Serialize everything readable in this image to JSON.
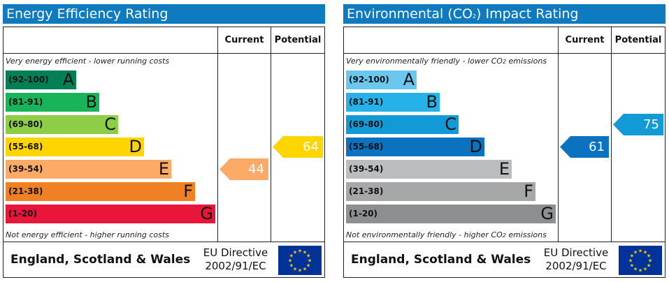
{
  "energy": {
    "title": "Energy Efficiency Rating",
    "col_current": "Current",
    "col_potential": "Potential",
    "top_note": "Very energy efficient - lower running costs",
    "bottom_note": "Not energy efficient - higher running costs",
    "bands": [
      {
        "range": "(92-100)",
        "letter": "A",
        "color": "#008054"
      },
      {
        "range": "(81-91)",
        "letter": "B",
        "color": "#19b459"
      },
      {
        "range": "(69-80)",
        "letter": "C",
        "color": "#8dce46"
      },
      {
        "range": "(55-68)",
        "letter": "D",
        "color": "#ffd500"
      },
      {
        "range": "(39-54)",
        "letter": "E",
        "color": "#fcaa65"
      },
      {
        "range": "(21-38)",
        "letter": "F",
        "color": "#ef8023"
      },
      {
        "range": "(1-20)",
        "letter": "G",
        "color": "#e9153b"
      }
    ],
    "current": {
      "value": "44",
      "band": "E",
      "color": "#fcaa65"
    },
    "potential": {
      "value": "64",
      "band": "D",
      "color": "#ffd500"
    },
    "footer": "England, Scotland & Wales",
    "directive_line1": "EU Directive",
    "directive_line2": "2002/91/EC"
  },
  "environment": {
    "title_pre": "Environmental (CO",
    "title_sub": "2",
    "title_post": ") Impact Rating",
    "col_current": "Current",
    "col_potential": "Potential",
    "top_note_pre": "Very environmentally friendly - lower CO",
    "top_note_sub": "2",
    "top_note_post": " emissions",
    "bottom_note_pre": "Not environmentally friendly - higher CO",
    "bottom_note_sub": "2",
    "bottom_note_post": " emissions",
    "bands": [
      {
        "range": "(92-100)",
        "letter": "A",
        "color": "#6cc7ef"
      },
      {
        "range": "(81-91)",
        "letter": "B",
        "color": "#26b2e9"
      },
      {
        "range": "(69-80)",
        "letter": "C",
        "color": "#129ad6"
      },
      {
        "range": "(55-68)",
        "letter": "D",
        "color": "#0b72c0"
      },
      {
        "range": "(39-54)",
        "letter": "E",
        "color": "#bbbdbf"
      },
      {
        "range": "(21-38)",
        "letter": "F",
        "color": "#a5a7a9"
      },
      {
        "range": "(1-20)",
        "letter": "G",
        "color": "#8d8f91"
      }
    ],
    "current": {
      "value": "61",
      "band": "D",
      "color": "#0b72c0"
    },
    "potential": {
      "value": "75",
      "band": "C",
      "color": "#129ad6"
    },
    "footer": "England, Scotland & Wales",
    "directive_line1": "EU Directive",
    "directive_line2": "2002/91/EC"
  },
  "icons": {
    "eu_flag": "eu-flag-icon"
  }
}
